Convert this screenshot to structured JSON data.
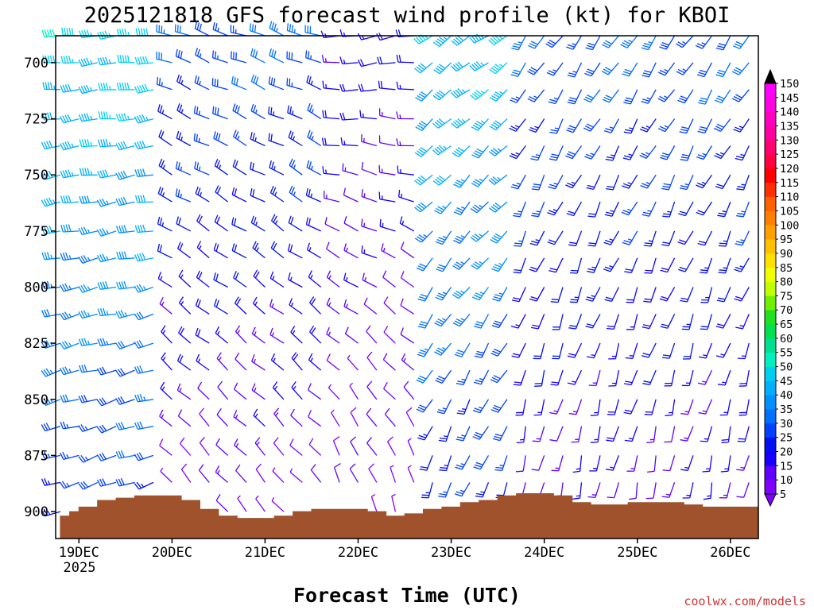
{
  "chart_data": {
    "type": "wind_profile_barbs",
    "title": "2025121818 GFS forecast wind profile (kt) for KBOI",
    "xlabel": "Forecast Time (UTC)",
    "ylabel": "",
    "y_unit": "hPa",
    "y_range": [
      688,
      912
    ],
    "y_ticks": [
      700,
      725,
      750,
      775,
      800,
      825,
      850,
      875,
      900
    ],
    "y_tick_labels": [
      "700",
      "725",
      "750",
      "775",
      "800",
      "825",
      "850",
      "875",
      "900"
    ],
    "x_range_days": [
      -0.25,
      7.3
    ],
    "x_ticks": [
      0,
      1,
      2,
      3,
      4,
      5,
      6,
      7
    ],
    "x_tick_labels": [
      "19DEC",
      "20DEC",
      "21DEC",
      "22DEC",
      "23DEC",
      "24DEC",
      "25DEC",
      "26DEC"
    ],
    "x_year_label": "2025",
    "colorbar": {
      "labels": [
        "5",
        "10",
        "15",
        "20",
        "25",
        "30",
        "35",
        "40",
        "45",
        "50",
        "55",
        "60",
        "65",
        "70",
        "75",
        "80",
        "85",
        "90",
        "95",
        "100",
        "105",
        "110",
        "115",
        "120",
        "125",
        "130",
        "135",
        "140",
        "145",
        "150"
      ],
      "colors": [
        "#8000ff",
        "#6000ff",
        "#1500ff",
        "#0010ee",
        "#0040ff",
        "#0070ff",
        "#0090ff",
        "#00b0ff",
        "#00d0f0",
        "#00f0c0",
        "#00e090",
        "#00e050",
        "#20e020",
        "#70f000",
        "#c0ff00",
        "#f0ff00",
        "#ffe000",
        "#ffc000",
        "#ffa000",
        "#ff8000",
        "#ff6000",
        "#ff3000",
        "#ff0000",
        "#ff0040",
        "#ff0070",
        "#ff00a0",
        "#ff00c0",
        "#ff00e0",
        "#ff00ff"
      ]
    },
    "ground_surface": {
      "unit": "hPa",
      "times": [
        -0.2,
        -0.1,
        0.0,
        0.2,
        0.4,
        0.6,
        0.8,
        0.95,
        1.1,
        1.3,
        1.5,
        1.7,
        1.9,
        2.1,
        2.3,
        2.5,
        2.7,
        2.9,
        3.1,
        3.3,
        3.5,
        3.7,
        3.9,
        4.1,
        4.3,
        4.5,
        4.7,
        4.9,
        5.1,
        5.3,
        5.5,
        5.7,
        5.9,
        6.1,
        6.3,
        6.5,
        6.7,
        6.9,
        7.1,
        7.3
      ],
      "pressure": [
        902,
        900,
        898,
        895,
        894,
        893,
        893,
        893,
        895,
        899,
        902,
        903,
        903,
        902,
        900,
        899,
        899,
        899,
        900,
        902,
        901,
        899,
        898,
        896,
        895,
        893,
        892,
        892,
        893,
        896,
        897,
        897,
        896,
        896,
        896,
        897,
        898,
        898,
        898,
        898
      ]
    },
    "barb_levels_hPa": [
      688,
      700,
      712,
      725,
      737,
      750,
      762,
      775,
      787,
      800,
      812,
      825,
      837,
      850,
      862,
      875,
      887,
      900
    ],
    "barb_times_days": [
      -0.2,
      0.0,
      0.2,
      0.4,
      0.6,
      0.8,
      1.0,
      1.2,
      1.4,
      1.6,
      1.8,
      2.0,
      2.2,
      2.4,
      2.6,
      2.8,
      3.0,
      3.2,
      3.4,
      3.6,
      3.8,
      4.0,
      4.2,
      4.4,
      4.6,
      4.8,
      5.0,
      5.2,
      5.4,
      5.6,
      5.8,
      6.0,
      6.2,
      6.4,
      6.6,
      6.8,
      7.0,
      7.2
    ],
    "wind_segments": [
      {
        "t_start": -0.2,
        "t_end": 0.9,
        "upper_dir_deg": 265,
        "upper_speed_kt": 48,
        "lower_dir_deg": 250,
        "lower_speed_kt": 25
      },
      {
        "t_start": 1.0,
        "t_end": 2.7,
        "upper_dir_deg": 290,
        "upper_speed_kt": 30,
        "lower_dir_deg": 320,
        "lower_speed_kt": 8
      },
      {
        "t_start": 2.8,
        "t_end": 3.7,
        "upper_dir_deg": 260,
        "upper_speed_kt": 18,
        "lower_dir_deg": 340,
        "lower_speed_kt": 7
      },
      {
        "t_start": 3.8,
        "t_end": 4.6,
        "upper_dir_deg": 235,
        "upper_speed_kt": 45,
        "lower_dir_deg": 200,
        "lower_speed_kt": 22
      },
      {
        "t_start": 4.7,
        "t_end": 7.3,
        "upper_dir_deg": 215,
        "upper_speed_kt": 30,
        "lower_dir_deg": 190,
        "lower_speed_kt": 12
      }
    ]
  },
  "credit": "coolwx.com/models"
}
